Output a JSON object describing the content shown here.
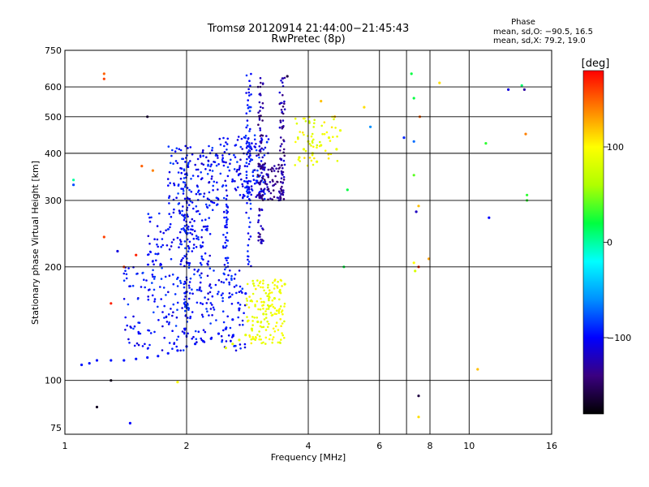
{
  "chart_data": {
    "type": "scatter",
    "title": "Tromsø 20120914 21:44:00−21:45:43",
    "subtitle": "RwPretec (8p)",
    "xlabel": "Frequency [MHz]",
    "ylabel": "Stationary phase Virtual Height [km]",
    "x_scale": "log",
    "y_scale": "log",
    "xlim": [
      1,
      16
    ],
    "ylim": [
      72,
      750
    ],
    "x_ticks": [
      1,
      2,
      4,
      6,
      8,
      10,
      16
    ],
    "y_ticks": [
      75,
      100,
      200,
      300,
      400,
      500,
      600,
      750
    ],
    "x_grid": [
      2,
      4,
      6,
      7,
      8,
      10
    ],
    "y_grid": [
      100,
      200,
      300,
      400,
      500,
      600
    ],
    "phase_info": {
      "heading": "Phase",
      "line1": "mean, sd,O: −90.5, 16.5",
      "line2": "mean, sd,X:  79.2, 19.0"
    },
    "colorbar": {
      "label": "[deg]",
      "range": [
        -180,
        180
      ],
      "ticks": [
        100,
        0,
        -100
      ],
      "colors": [
        "#000000",
        "#3a0080",
        "#0000ff",
        "#0090ff",
        "#00ffff",
        "#00ff40",
        "#b0ff00",
        "#ffff00",
        "#ff8000",
        "#ff0000"
      ]
    },
    "o_trace": {
      "phase": -95,
      "x": [
        1.1,
        1.15,
        1.2,
        1.3,
        1.4,
        1.5,
        1.6,
        1.7,
        1.8,
        1.9,
        2.0,
        2.1,
        2.2,
        2.3,
        2.4,
        2.5,
        2.6,
        2.7,
        2.8
      ],
      "y": [
        110,
        111,
        113,
        113,
        113,
        114,
        115,
        116,
        118,
        120,
        123,
        125,
        127,
        129,
        133,
        137,
        145,
        155,
        170
      ]
    },
    "x_trace": {
      "phase": 85,
      "x": [
        2.5,
        2.6,
        2.7,
        2.8,
        2.9,
        3.0,
        3.1,
        3.2,
        3.3,
        3.4,
        3.5
      ],
      "y": [
        122,
        125,
        128,
        132,
        137,
        143,
        150,
        157,
        165,
        172,
        180
      ]
    },
    "f_region_x_points": {
      "phase": 90,
      "x": [
        3.8,
        3.9,
        4.0,
        4.1,
        4.2,
        4.3,
        4.5,
        4.7,
        4.8
      ],
      "y": [
        390,
        410,
        430,
        400,
        380,
        420,
        440,
        410,
        460
      ]
    },
    "scatter_points": [
      {
        "x": 1.25,
        "y": 650,
        "phase": 150
      },
      {
        "x": 1.25,
        "y": 630,
        "phase": 160
      },
      {
        "x": 1.05,
        "y": 340,
        "phase": 0
      },
      {
        "x": 1.05,
        "y": 330,
        "phase": -80
      },
      {
        "x": 1.6,
        "y": 500,
        "phase": -160
      },
      {
        "x": 1.55,
        "y": 370,
        "phase": 150
      },
      {
        "x": 1.65,
        "y": 360,
        "phase": 140
      },
      {
        "x": 1.25,
        "y": 240,
        "phase": 160
      },
      {
        "x": 1.35,
        "y": 220,
        "phase": -110
      },
      {
        "x": 1.4,
        "y": 200,
        "phase": 160
      },
      {
        "x": 1.5,
        "y": 215,
        "phase": 170
      },
      {
        "x": 1.3,
        "y": 160,
        "phase": 170
      },
      {
        "x": 1.2,
        "y": 85,
        "phase": -170
      },
      {
        "x": 1.3,
        "y": 100,
        "phase": -170
      },
      {
        "x": 1.45,
        "y": 77,
        "phase": -100
      },
      {
        "x": 1.9,
        "y": 99,
        "phase": 100
      },
      {
        "x": 3.55,
        "y": 640,
        "phase": -160
      },
      {
        "x": 4.3,
        "y": 550,
        "phase": 120
      },
      {
        "x": 4.65,
        "y": 500,
        "phase": 120
      },
      {
        "x": 5.5,
        "y": 530,
        "phase": 110
      },
      {
        "x": 5.7,
        "y": 470,
        "phase": -60
      },
      {
        "x": 5.0,
        "y": 320,
        "phase": 20
      },
      {
        "x": 4.9,
        "y": 200,
        "phase": 20
      },
      {
        "x": 7.2,
        "y": 650,
        "phase": 20
      },
      {
        "x": 7.3,
        "y": 560,
        "phase": 20
      },
      {
        "x": 7.55,
        "y": 500,
        "phase": 150
      },
      {
        "x": 6.9,
        "y": 440,
        "phase": -90
      },
      {
        "x": 7.3,
        "y": 430,
        "phase": -70
      },
      {
        "x": 7.3,
        "y": 350,
        "phase": 40
      },
      {
        "x": 7.5,
        "y": 290,
        "phase": 120
      },
      {
        "x": 7.4,
        "y": 280,
        "phase": -120
      },
      {
        "x": 7.3,
        "y": 205,
        "phase": 100
      },
      {
        "x": 7.5,
        "y": 200,
        "phase": 170
      },
      {
        "x": 7.35,
        "y": 195,
        "phase": 80
      },
      {
        "x": 7.95,
        "y": 210,
        "phase": 130
      },
      {
        "x": 8.45,
        "y": 615,
        "phase": 110
      },
      {
        "x": 7.5,
        "y": 91,
        "phase": -160
      },
      {
        "x": 7.5,
        "y": 80,
        "phase": 110
      },
      {
        "x": 10.5,
        "y": 107,
        "phase": 120
      },
      {
        "x": 11.0,
        "y": 425,
        "phase": 30
      },
      {
        "x": 11.2,
        "y": 270,
        "phase": -100
      },
      {
        "x": 12.5,
        "y": 590,
        "phase": -110
      },
      {
        "x": 13.5,
        "y": 605,
        "phase": 10
      },
      {
        "x": 13.7,
        "y": 590,
        "phase": -130
      },
      {
        "x": 13.8,
        "y": 450,
        "phase": 140
      },
      {
        "x": 13.9,
        "y": 310,
        "phase": 30
      },
      {
        "x": 13.9,
        "y": 300,
        "phase": 30
      }
    ]
  }
}
